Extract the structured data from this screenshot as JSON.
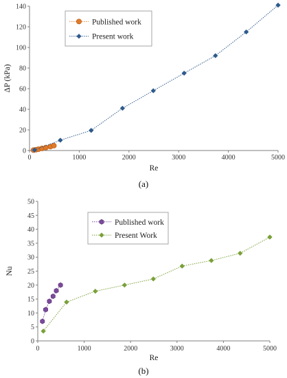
{
  "chart_data": [
    {
      "type": "line",
      "caption": "(a)",
      "xlabel": "Re",
      "ylabel": "ΔP (kPa)",
      "xlim": [
        0,
        5000
      ],
      "ylim": [
        0,
        140
      ],
      "xticks": [
        0,
        1000,
        2000,
        3000,
        4000,
        5000
      ],
      "yticks": [
        0,
        20,
        40,
        60,
        80,
        100,
        120,
        140
      ],
      "grid": false,
      "legend": "top-left",
      "series": [
        {
          "name": "Published work",
          "color": "#e07b2a",
          "marker": "circle",
          "x": [
            80,
            130,
            180,
            250,
            330,
            420,
            490
          ],
          "y": [
            0.4,
            0.8,
            1.3,
            2.0,
            2.9,
            3.8,
            4.7
          ]
        },
        {
          "name": "Present work",
          "color": "#2e5a8c",
          "marker": "diamond",
          "x": [
            100,
            620,
            1240,
            1870,
            2490,
            3110,
            3740,
            4360,
            5000
          ],
          "y": [
            0.5,
            10,
            19.5,
            41,
            58,
            75,
            92,
            115,
            141
          ]
        }
      ]
    },
    {
      "type": "line",
      "caption": "(b)",
      "xlabel": "Re",
      "ylabel": "Nu",
      "xlim": [
        0,
        5000
      ],
      "ylim": [
        0,
        50
      ],
      "xticks": [
        0,
        1000,
        2000,
        3000,
        4000,
        5000
      ],
      "yticks": [
        0,
        5,
        10,
        15,
        20,
        25,
        30,
        35,
        40,
        45,
        50
      ],
      "grid": false,
      "legend": "top-left",
      "series": [
        {
          "name": "Published work",
          "color": "#7b4a9a",
          "marker": "hexagon",
          "x": [
            100,
            170,
            250,
            330,
            400,
            490
          ],
          "y": [
            7,
            11.2,
            14.2,
            16.0,
            18.0,
            20.0
          ]
        },
        {
          "name": "Present Work",
          "color": "#7aa038",
          "marker": "diamond",
          "x": [
            120,
            620,
            1240,
            1870,
            2490,
            3110,
            3740,
            4360,
            5000
          ],
          "y": [
            3.5,
            13.9,
            17.8,
            20.0,
            22.2,
            26.8,
            28.8,
            31.4,
            37.2
          ]
        }
      ]
    }
  ]
}
